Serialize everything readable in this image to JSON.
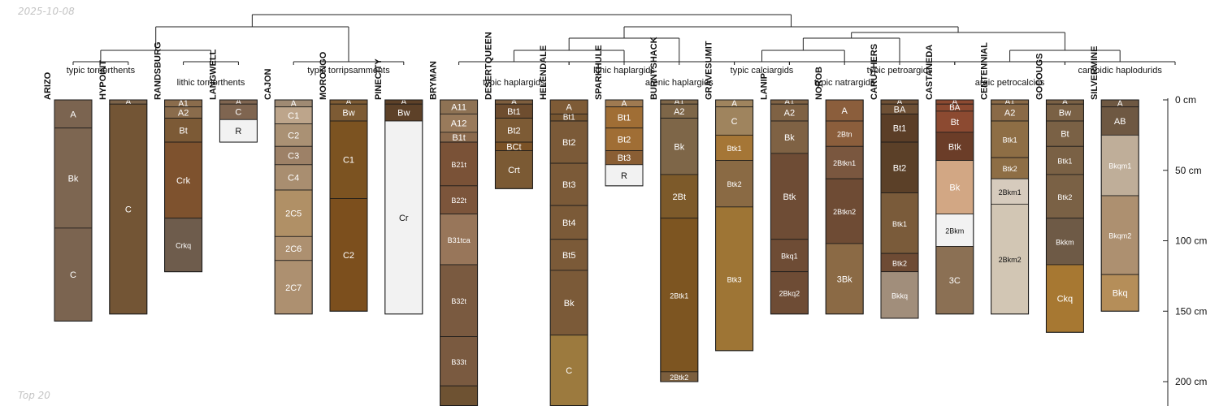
{
  "date_label": "2025-10-08",
  "footer_label": "Top 20",
  "depth_axis": {
    "unit": "cm",
    "max_depth": 217,
    "tick_values": [
      0,
      50,
      100,
      150,
      200
    ],
    "tick_labels": [
      "0 cm",
      "50 cm",
      "100 cm",
      "150 cm",
      "200 cm"
    ]
  },
  "dendrogram_groups": [
    {
      "id": "g1",
      "label": "typic torriorthents"
    },
    {
      "id": "g2",
      "label": "lithic torriorthents"
    },
    {
      "id": "g3",
      "label": "typic torripsamments"
    },
    {
      "id": "g4",
      "label": "typic haplargids"
    },
    {
      "id": "g5",
      "label": "lithic haplargids"
    },
    {
      "id": "g6",
      "label": "arenic haplargids"
    },
    {
      "id": "g7",
      "label": "typic calciargids"
    },
    {
      "id": "g8",
      "label": "typic natrargids"
    },
    {
      "id": "g9",
      "label": "typic petroargids"
    },
    {
      "id": "g10",
      "label": "argic petrocalcids"
    },
    {
      "id": "g11",
      "label": "cambidic haplodurids"
    }
  ],
  "profiles": [
    {
      "name": "ARIZO",
      "group": "typic torriorthents",
      "horizons": [
        {
          "name": "A",
          "top": 0,
          "bottom": 20,
          "color": "#7b6450"
        },
        {
          "name": "Bk",
          "top": 20,
          "bottom": 91,
          "color": "#7d6651"
        },
        {
          "name": "C",
          "top": 91,
          "bottom": 157,
          "color": "#7b6450"
        }
      ]
    },
    {
      "name": "HYPOINT",
      "group": "typic torriorthents",
      "horizons": [
        {
          "name": "A",
          "top": 0,
          "bottom": 3,
          "color": "#7c6349"
        },
        {
          "name": "C",
          "top": 3,
          "bottom": 152,
          "color": "#735535"
        }
      ]
    },
    {
      "name": "RANDSBURG",
      "group": "lithic torriorthents",
      "horizons": [
        {
          "name": "A1",
          "top": 0,
          "bottom": 5,
          "color": "#8a6c4c"
        },
        {
          "name": "A2",
          "top": 5,
          "bottom": 13,
          "color": "#8a6c4c"
        },
        {
          "name": "Bt",
          "top": 13,
          "bottom": 30,
          "color": "#7c5a36"
        },
        {
          "name": "Crk",
          "top": 30,
          "bottom": 84,
          "color": "#7e522e"
        },
        {
          "name": "Crkq",
          "top": 84,
          "bottom": 122,
          "color": "#6e5c4c"
        }
      ]
    },
    {
      "name": "LANGWELL",
      "group": "lithic torriorthents",
      "horizons": [
        {
          "name": "A",
          "top": 0,
          "bottom": 3,
          "color": "#7f6550"
        },
        {
          "name": "C",
          "top": 3,
          "bottom": 14,
          "color": "#7f6550"
        },
        {
          "name": "R",
          "top": 14,
          "bottom": 30,
          "color": "#f2f2f2"
        }
      ]
    },
    {
      "name": "CAJON",
      "group": "typic torripsamments",
      "horizons": [
        {
          "name": "A",
          "top": 0,
          "bottom": 5,
          "color": "#9f8a73"
        },
        {
          "name": "C1",
          "top": 5,
          "bottom": 17,
          "color": "#bda58b"
        },
        {
          "name": "C2",
          "top": 17,
          "bottom": 33,
          "color": "#aa9174"
        },
        {
          "name": "C3",
          "top": 33,
          "bottom": 46,
          "color": "#9d8167"
        },
        {
          "name": "C4",
          "top": 46,
          "bottom": 64,
          "color": "#a98e70"
        },
        {
          "name": "2C5",
          "top": 64,
          "bottom": 97,
          "color": "#b09066"
        },
        {
          "name": "2C6",
          "top": 97,
          "bottom": 114,
          "color": "#ad9070"
        },
        {
          "name": "2C7",
          "top": 114,
          "bottom": 152,
          "color": "#ad9070"
        }
      ]
    },
    {
      "name": "MORONGO",
      "group": "typic torripsamments",
      "horizons": [
        {
          "name": "A",
          "top": 0,
          "bottom": 3,
          "color": "#7d5b34"
        },
        {
          "name": "Bw",
          "top": 3,
          "bottom": 15,
          "color": "#7d5b34"
        },
        {
          "name": "C1",
          "top": 15,
          "bottom": 70,
          "color": "#7c5321"
        },
        {
          "name": "C2",
          "top": 70,
          "bottom": 150,
          "color": "#7c4f1d"
        }
      ]
    },
    {
      "name": "PINECITY",
      "group": "typic torripsamments",
      "horizons": [
        {
          "name": "A",
          "top": 0,
          "bottom": 3,
          "color": "#5d4128"
        },
        {
          "name": "Bw",
          "top": 3,
          "bottom": 15,
          "color": "#5d4128"
        },
        {
          "name": "Cr",
          "top": 15,
          "bottom": 152,
          "color": "#f2f2f2"
        }
      ]
    },
    {
      "name": "BRYMAN",
      "group": "typic haplargids",
      "horizons": [
        {
          "name": "A11",
          "top": 0,
          "bottom": 10,
          "color": "#8e7254"
        },
        {
          "name": "A12",
          "top": 10,
          "bottom": 23,
          "color": "#997a5b"
        },
        {
          "name": "B1t",
          "top": 23,
          "bottom": 30,
          "color": "#8b6a4d"
        },
        {
          "name": "B21t",
          "top": 30,
          "bottom": 61,
          "color": "#7a5237"
        },
        {
          "name": "B22t",
          "top": 61,
          "bottom": 81,
          "color": "#7c553b"
        },
        {
          "name": "B31tca",
          "top": 81,
          "bottom": 117,
          "color": "#98765a"
        },
        {
          "name": "B32t",
          "top": 117,
          "bottom": 168,
          "color": "#7a5a40"
        },
        {
          "name": "B33t",
          "top": 168,
          "bottom": 203,
          "color": "#7a5a40"
        },
        {
          "name": "",
          "top": 203,
          "bottom": 217,
          "color": "#6e5232"
        }
      ]
    },
    {
      "name": "DESERTQUEEN",
      "group": "typic haplargids",
      "horizons": [
        {
          "name": "A",
          "top": 0,
          "bottom": 3,
          "color": "#7e5e3e"
        },
        {
          "name": "Bt1",
          "top": 3,
          "bottom": 13,
          "color": "#6e4d2f"
        },
        {
          "name": "Bt2",
          "top": 13,
          "bottom": 30,
          "color": "#7d5b35"
        },
        {
          "name": "BCt",
          "top": 30,
          "bottom": 36,
          "color": "#7b5226"
        },
        {
          "name": "Crt",
          "top": 36,
          "bottom": 63,
          "color": "#7b5a34"
        }
      ]
    },
    {
      "name": "HELENDALE",
      "group": "typic haplargids",
      "horizons": [
        {
          "name": "A",
          "top": 0,
          "bottom": 10,
          "color": "#7e5b36"
        },
        {
          "name": "Bt1",
          "top": 10,
          "bottom": 15,
          "color": "#765530"
        },
        {
          "name": "Bt2",
          "top": 15,
          "bottom": 45,
          "color": "#7b5a38"
        },
        {
          "name": "Bt3",
          "top": 45,
          "bottom": 75,
          "color": "#7b5a38"
        },
        {
          "name": "Bt4",
          "top": 75,
          "bottom": 99,
          "color": "#7b5a38"
        },
        {
          "name": "Bt5",
          "top": 99,
          "bottom": 121,
          "color": "#7b5a38"
        },
        {
          "name": "Bk",
          "top": 121,
          "bottom": 167,
          "color": "#7b5a38"
        },
        {
          "name": "C",
          "top": 167,
          "bottom": 217,
          "color": "#9c7a3e"
        }
      ]
    },
    {
      "name": "SPARKHULE",
      "group": "lithic haplargids",
      "horizons": [
        {
          "name": "A",
          "top": 0,
          "bottom": 5,
          "color": "#9f7a51"
        },
        {
          "name": "Bt1",
          "top": 5,
          "bottom": 20,
          "color": "#a06e35"
        },
        {
          "name": "Bt2",
          "top": 20,
          "bottom": 36,
          "color": "#a06e35"
        },
        {
          "name": "Bt3",
          "top": 36,
          "bottom": 46,
          "color": "#8a5e34"
        },
        {
          "name": "R",
          "top": 46,
          "bottom": 61,
          "color": "#f2f2f2"
        }
      ]
    },
    {
      "name": "BURNTSHACK",
      "group": "arenic haplargids",
      "horizons": [
        {
          "name": "A1",
          "top": 0,
          "bottom": 3,
          "color": "#7e6648"
        },
        {
          "name": "A2",
          "top": 3,
          "bottom": 13,
          "color": "#7e6648"
        },
        {
          "name": "Bk",
          "top": 13,
          "bottom": 53,
          "color": "#7e6648"
        },
        {
          "name": "2Bt",
          "top": 53,
          "bottom": 84,
          "color": "#7d5a2a"
        },
        {
          "name": "2Btk1",
          "top": 84,
          "bottom": 193,
          "color": "#7d5521"
        },
        {
          "name": "2Btk2",
          "top": 193,
          "bottom": 200,
          "color": "#7b5e3d"
        }
      ]
    },
    {
      "name": "GRAVESUMIT",
      "group": "typic calciargids",
      "horizons": [
        {
          "name": "A",
          "top": 0,
          "bottom": 5,
          "color": "#9f845e"
        },
        {
          "name": "C",
          "top": 5,
          "bottom": 25,
          "color": "#9f845e"
        },
        {
          "name": "Btk1",
          "top": 25,
          "bottom": 43,
          "color": "#a57636"
        },
        {
          "name": "Btk2",
          "top": 43,
          "bottom": 76,
          "color": "#8a6a44"
        },
        {
          "name": "Btk3",
          "top": 76,
          "bottom": 178,
          "color": "#9e7535"
        }
      ]
    },
    {
      "name": "LANIP",
      "group": "typic calciargids",
      "horizons": [
        {
          "name": "A1",
          "top": 0,
          "bottom": 3,
          "color": "#7f6244"
        },
        {
          "name": "A2",
          "top": 3,
          "bottom": 15,
          "color": "#7f6244"
        },
        {
          "name": "Bk",
          "top": 15,
          "bottom": 38,
          "color": "#7f6244"
        },
        {
          "name": "Btk",
          "top": 38,
          "bottom": 99,
          "color": "#6e4c35"
        },
        {
          "name": "Bkq1",
          "top": 99,
          "bottom": 122,
          "color": "#6e4c35"
        },
        {
          "name": "2Bkq2",
          "top": 122,
          "bottom": 152,
          "color": "#6e4c35"
        }
      ]
    },
    {
      "name": "NOROB",
      "group": "typic natrargids",
      "horizons": [
        {
          "name": "A",
          "top": 0,
          "bottom": 15,
          "color": "#8b5e3c"
        },
        {
          "name": "2Btn",
          "top": 15,
          "bottom": 33,
          "color": "#8b5e3c"
        },
        {
          "name": "2Btkn1",
          "top": 33,
          "bottom": 56,
          "color": "#7a573f"
        },
        {
          "name": "2Btkn2",
          "top": 56,
          "bottom": 102,
          "color": "#6e4b34"
        },
        {
          "name": "3Bk",
          "top": 102,
          "bottom": 152,
          "color": "#8b6a45"
        }
      ]
    },
    {
      "name": "CARUTHERS",
      "group": "typic petroargids",
      "horizons": [
        {
          "name": "A",
          "top": 0,
          "bottom": 3,
          "color": "#6e5035"
        },
        {
          "name": "BA",
          "top": 3,
          "bottom": 10,
          "color": "#6e5035"
        },
        {
          "name": "Bt1",
          "top": 10,
          "bottom": 30,
          "color": "#5b3e27"
        },
        {
          "name": "Bt2",
          "top": 30,
          "bottom": 66,
          "color": "#5b4028"
        },
        {
          "name": "Btk1",
          "top": 66,
          "bottom": 109,
          "color": "#7a5b3a"
        },
        {
          "name": "Btk2",
          "top": 109,
          "bottom": 122,
          "color": "#6e4b34"
        },
        {
          "name": "Bkkq",
          "top": 122,
          "bottom": 155,
          "color": "#a18e7b"
        }
      ]
    },
    {
      "name": "CASTANEDA",
      "group": "argic petrocalcids",
      "horizons": [
        {
          "name": "A",
          "top": 0,
          "bottom": 3,
          "color": "#8c4a31"
        },
        {
          "name": "BA",
          "top": 3,
          "bottom": 8,
          "color": "#8c4a31"
        },
        {
          "name": "Bt",
          "top": 8,
          "bottom": 23,
          "color": "#8c4a31"
        },
        {
          "name": "Btk",
          "top": 23,
          "bottom": 43,
          "color": "#6b3d28"
        },
        {
          "name": "Bk",
          "top": 43,
          "bottom": 81,
          "color": "#d2a784"
        },
        {
          "name": "2Bkm",
          "top": 81,
          "bottom": 104,
          "color": "#f2f2f2"
        },
        {
          "name": "3C",
          "top": 104,
          "bottom": 152,
          "color": "#8b7054"
        }
      ]
    },
    {
      "name": "CENTENNIAL",
      "group": "argic petrocalcids",
      "horizons": [
        {
          "name": "A1",
          "top": 0,
          "bottom": 3,
          "color": "#8a6a47"
        },
        {
          "name": "A2",
          "top": 3,
          "bottom": 15,
          "color": "#8a6a47"
        },
        {
          "name": "Btk1",
          "top": 15,
          "bottom": 41,
          "color": "#8e6e45"
        },
        {
          "name": "Btk2",
          "top": 41,
          "bottom": 56,
          "color": "#8e6e45"
        },
        {
          "name": "2Bkm1",
          "top": 56,
          "bottom": 74,
          "color": "#d6cbbd"
        },
        {
          "name": "2Bkm2",
          "top": 74,
          "bottom": 152,
          "color": "#d2c6b4"
        }
      ]
    },
    {
      "name": "GOCOUGS",
      "group": "argic petrocalcids",
      "horizons": [
        {
          "name": "A",
          "top": 0,
          "bottom": 3,
          "color": "#7a6145"
        },
        {
          "name": "Bw",
          "top": 3,
          "bottom": 15,
          "color": "#7a6145"
        },
        {
          "name": "Bt",
          "top": 15,
          "bottom": 33,
          "color": "#7a6145"
        },
        {
          "name": "Btk1",
          "top": 33,
          "bottom": 53,
          "color": "#7a6145"
        },
        {
          "name": "Btk2",
          "top": 53,
          "bottom": 84,
          "color": "#7a6145"
        },
        {
          "name": "Bkkm",
          "top": 84,
          "bottom": 117,
          "color": "#6e5a46"
        },
        {
          "name": "Ckq",
          "top": 117,
          "bottom": 165,
          "color": "#a77832"
        }
      ]
    },
    {
      "name": "SILVERMINE",
      "group": "cambidic haplodurids",
      "horizons": [
        {
          "name": "A",
          "top": 0,
          "bottom": 5,
          "color": "#6e5842"
        },
        {
          "name": "AB",
          "top": 5,
          "bottom": 25,
          "color": "#6e5842"
        },
        {
          "name": "Bkqm1",
          "top": 25,
          "bottom": 68,
          "color": "#bfae99"
        },
        {
          "name": "Bkqm2",
          "top": 68,
          "bottom": 124,
          "color": "#ad9070"
        },
        {
          "name": "Bkq",
          "top": 124,
          "bottom": 150,
          "color": "#b58e59"
        }
      ]
    }
  ]
}
